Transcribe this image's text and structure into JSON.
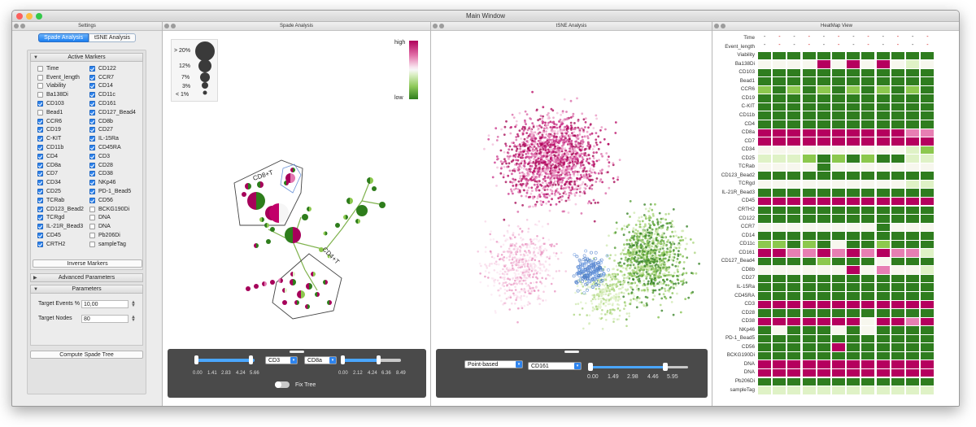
{
  "window": {
    "title": "Main Window"
  },
  "panels": {
    "settings": "Settings",
    "spade": "Spade Analysis",
    "tsne": "tSNE Analysis",
    "heatmap": "HeatMap View"
  },
  "tabs": [
    {
      "label": "Spade Analysis",
      "active": true
    },
    {
      "label": "tSNE Analysis",
      "active": false
    }
  ],
  "active_markers": {
    "title": "Active Markers",
    "left": [
      {
        "label": "Time",
        "checked": false
      },
      {
        "label": "Event_length",
        "checked": false
      },
      {
        "label": "Viability",
        "checked": false
      },
      {
        "label": "Ba138Di",
        "checked": false
      },
      {
        "label": "CD103",
        "checked": true
      },
      {
        "label": "Bead1",
        "checked": false
      },
      {
        "label": "CCR6",
        "checked": true
      },
      {
        "label": "CD19",
        "checked": true
      },
      {
        "label": "C-KIT",
        "checked": true
      },
      {
        "label": "CD11b",
        "checked": true
      },
      {
        "label": "CD4",
        "checked": true
      },
      {
        "label": "CD8a",
        "checked": true
      },
      {
        "label": "CD7",
        "checked": true
      },
      {
        "label": "CD34",
        "checked": true
      },
      {
        "label": "CD25",
        "checked": true
      },
      {
        "label": "TCRab",
        "checked": true
      },
      {
        "label": "CD123_Bead2",
        "checked": true
      },
      {
        "label": "TCRgd",
        "checked": true
      },
      {
        "label": "IL-21R_Bead3",
        "checked": true
      },
      {
        "label": "CD45",
        "checked": true
      },
      {
        "label": "CRTH2",
        "checked": true
      }
    ],
    "right": [
      {
        "label": "CD122",
        "checked": true
      },
      {
        "label": "CCR7",
        "checked": true
      },
      {
        "label": "CD14",
        "checked": true
      },
      {
        "label": "CD11c",
        "checked": true
      },
      {
        "label": "CD161",
        "checked": true
      },
      {
        "label": "CD127_Bead4",
        "checked": true
      },
      {
        "label": "CD8b",
        "checked": true
      },
      {
        "label": "CD27",
        "checked": true
      },
      {
        "label": "IL-15Ra",
        "checked": true
      },
      {
        "label": "CD45RA",
        "checked": true
      },
      {
        "label": "CD3",
        "checked": true
      },
      {
        "label": "CD28",
        "checked": true
      },
      {
        "label": "CD38",
        "checked": true
      },
      {
        "label": "NKp46",
        "checked": true
      },
      {
        "label": "PD-1_Bead5",
        "checked": true
      },
      {
        "label": "CD56",
        "checked": true
      },
      {
        "label": "BCKG190Di",
        "checked": false
      },
      {
        "label": "DNA",
        "checked": false
      },
      {
        "label": "DNA",
        "checked": false
      },
      {
        "label": "Pb206Di",
        "checked": false
      },
      {
        "label": "sampleTag",
        "checked": false
      }
    ],
    "inverse_button": "Inverse Markers"
  },
  "advanced": {
    "title": "Advanced Parameters"
  },
  "parameters": {
    "title": "Parameters",
    "target_events_label": "Target Events %",
    "target_events_value": "10,00",
    "target_nodes_label": "Target Nodes",
    "target_nodes_value": "80",
    "compute_button": "Compute Spade Tree"
  },
  "spade": {
    "size_legend": [
      "> 20%",
      "12%",
      "7%",
      "3%",
      "< 1%"
    ],
    "color_legend": {
      "high": "high",
      "low": "low"
    },
    "group_labels": {
      "cd8": "CD8+T",
      "cd4": "CD4+T"
    },
    "controls": {
      "slider1_ticks": [
        "0.00",
        "1.41",
        "2.83",
        "4.24",
        "5.66"
      ],
      "slider2_ticks": [
        "0.00",
        "2.12",
        "4.24",
        "6.36",
        "8.49"
      ],
      "select1": "CD3",
      "select2": "CD8a",
      "fix_tree": "Fix Tree"
    }
  },
  "tsne": {
    "controls": {
      "mode": "Point-based",
      "marker": "CD161",
      "ticks": [
        "0.00",
        "1.49",
        "2.98",
        "4.46",
        "5.95"
      ]
    }
  },
  "heatmap": {
    "rows": [
      {
        "label": "Time",
        "cells": "dddddddddddd"
      },
      {
        "label": "Event_length",
        "cells": "dddddddddddd"
      },
      {
        "label": "Viability",
        "cells": "GGGGGGGGGGGG"
      },
      {
        "label": "Ba138Di",
        "cells": "wwwwMwMwMwlw"
      },
      {
        "label": "CD103",
        "cells": "GGGGGGGGGGGG"
      },
      {
        "label": "Bead1",
        "cells": "GGGGGGGGGGGG"
      },
      {
        "label": "CCR6",
        "cells": "gGgGgGgGgGgG"
      },
      {
        "label": "CD19",
        "cells": "GGGGGGGGGGGG"
      },
      {
        "label": "C-KIT",
        "cells": "GGGGGGGGGGGG"
      },
      {
        "label": "CD11b",
        "cells": "GGGGGGGGGGGG"
      },
      {
        "label": "CD4",
        "cells": "GGGGGGGGGGGG"
      },
      {
        "label": "CD8a",
        "cells": "MMMMMMMMMMpp"
      },
      {
        "label": "CD7",
        "cells": "MMMMMMMMMMMM"
      },
      {
        "label": "CD34",
        "cells": "wwwwwwwwwwlg"
      },
      {
        "label": "CD25",
        "cells": "lllgGgGgGGll"
      },
      {
        "label": "TCRab",
        "cells": "wwwwGwwwwwww"
      },
      {
        "label": "CD123_Bead2",
        "cells": "GGGGGGGGGGGG"
      },
      {
        "label": "TCRgd",
        "cells": "wwwwwwwwwwll"
      },
      {
        "label": "IL-21R_Bead3",
        "cells": "GGGGGGGGGGGG"
      },
      {
        "label": "CD45",
        "cells": "MMMMMMMMMMMM"
      },
      {
        "label": "CRTH2",
        "cells": "GGGGGGGGGGGG"
      },
      {
        "label": "CD122",
        "cells": "GGGGGGGGGGGG"
      },
      {
        "label": "CCR7",
        "cells": "wwwwwwwwGwww"
      },
      {
        "label": "CD14",
        "cells": "GGGGGGGGGGGG"
      },
      {
        "label": "CD11c",
        "cells": "ggGgGwGGgGGG"
      },
      {
        "label": "CD161",
        "cells": "MMppMpMpMppl"
      },
      {
        "label": "CD127_Bead4",
        "cells": "GGGGgGGGwGGG"
      },
      {
        "label": "CD8b",
        "cells": "wwwwwwMwpwwl"
      },
      {
        "label": "CD27",
        "cells": "GGGGGGGGGGGG"
      },
      {
        "label": "IL-15Ra",
        "cells": "GGGGGGGGGGGG"
      },
      {
        "label": "CD45RA",
        "cells": "GGGGGGGGGGGG"
      },
      {
        "label": "CD3",
        "cells": "MMMMMMMMMMMM"
      },
      {
        "label": "CD28",
        "cells": "GGGGGGGGGGGG"
      },
      {
        "label": "CD38",
        "cells": "MMMMMMMwMMpM"
      },
      {
        "label": "NKp46",
        "cells": "GwGGGwGwGGGG"
      },
      {
        "label": "PD-1_Bead5",
        "cells": "GGGGGGGGGGGG"
      },
      {
        "label": "CD56",
        "cells": "GGGGGMGGGGGG"
      },
      {
        "label": "BCKG190Di",
        "cells": "GGGGGGGGGGGG"
      },
      {
        "label": "DNA",
        "cells": "MMMMMMMMMMMM"
      },
      {
        "label": "DNA",
        "cells": "MMMMMMMMMMMM"
      },
      {
        "label": "Pb206Di",
        "cells": "GGGGGGGGGGGG"
      },
      {
        "label": "sampleTag",
        "cells": "llllllllllll"
      }
    ],
    "palette": {
      "M": "#b5005e",
      "p": "#e77fb3",
      "w": "#f7f7ee",
      "l": "#dff2c6",
      "g": "#8cc84e",
      "G": "#2f7d1f",
      "d": "#ffffff"
    }
  }
}
